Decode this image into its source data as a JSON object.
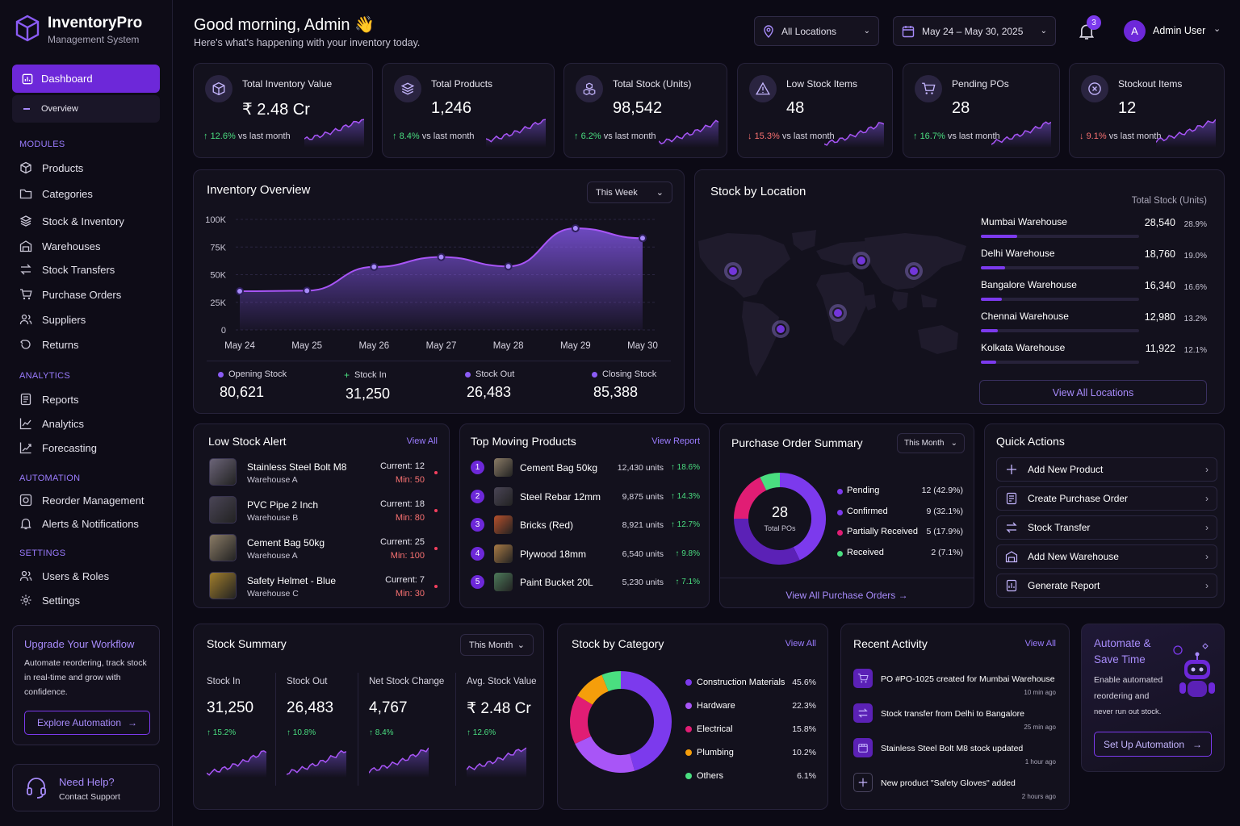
{
  "app": {
    "name": "InventoryPro",
    "subtitle": "Management System"
  },
  "sidebar": {
    "active": {
      "label": "Dashboard",
      "sub": "Overview"
    },
    "sections": [
      {
        "title": "MODULES",
        "items": [
          "Products",
          "Categories",
          "Stock & Inventory",
          "Warehouses",
          "Stock Transfers",
          "Purchase Orders",
          "Suppliers",
          "Returns"
        ]
      },
      {
        "title": "ANALYTICS",
        "items": [
          "Reports",
          "Analytics",
          "Forecasting"
        ]
      },
      {
        "title": "AUTOMATION",
        "items": [
          "Reorder Management",
          "Alerts & Notifications"
        ]
      },
      {
        "title": "SETTINGS",
        "items": [
          "Users & Roles",
          "Settings"
        ]
      }
    ],
    "upgrade": {
      "title": "Upgrade Your Workflow",
      "text1": "Automate reordering, track stock",
      "text2": "in real-time and grow with",
      "text3": "confidence.",
      "button": "Explore Automation"
    },
    "help": {
      "title": "Need Help?",
      "sub": "Contact Support"
    }
  },
  "header": {
    "greeting": "Good morning, Admin 👋",
    "subtitle": "Here's what's happening with your inventory today.",
    "location": "All Locations",
    "daterange": "May 24 – May 30, 2025",
    "notifications": "3",
    "avatar": "A",
    "user": "Admin User"
  },
  "kpis": [
    {
      "label": "Total Inventory Value",
      "value": "₹ 2.48 Cr",
      "dir": "up",
      "change": "12.6%",
      "note": "vs last month",
      "icon": "cube-icon"
    },
    {
      "label": "Total Products",
      "value": "1,246",
      "dir": "up",
      "change": "8.4%",
      "note": "vs last month",
      "icon": "layers-icon"
    },
    {
      "label": "Total Stock (Units)",
      "value": "98,542",
      "dir": "up",
      "change": "6.2%",
      "note": "vs last month",
      "icon": "boxes-icon"
    },
    {
      "label": "Low Stock Items",
      "value": "48",
      "dir": "down",
      "change": "15.3%",
      "note": "vs last month",
      "icon": "warning-icon"
    },
    {
      "label": "Pending POs",
      "value": "28",
      "dir": "up",
      "change": "16.7%",
      "note": "vs last month",
      "icon": "cart-icon"
    },
    {
      "label": "Stockout Items",
      "value": "12",
      "dir": "down",
      "change": "9.1%",
      "note": "vs last month",
      "icon": "x-circle-icon"
    }
  ],
  "overview": {
    "title": "Inventory Overview",
    "period": "This Week",
    "stats": [
      {
        "label": "Opening Stock",
        "value": "80,621",
        "marker": "dot"
      },
      {
        "label": "Stock In",
        "value": "31,250",
        "marker": "plus"
      },
      {
        "label": "Stock Out",
        "value": "26,483",
        "marker": "dot"
      },
      {
        "label": "Closing Stock",
        "value": "85,388",
        "marker": "dot"
      }
    ]
  },
  "chart_data": {
    "type": "area",
    "categories": [
      "May 24",
      "May 25",
      "May 26",
      "May 27",
      "May 28",
      "May 29",
      "May 30"
    ],
    "values": [
      35000,
      35500,
      57000,
      66000,
      57500,
      92000,
      83000
    ],
    "y_ticks": [
      "100K",
      "75K",
      "50K",
      "25K",
      "0"
    ],
    "ylim": [
      0,
      100000
    ],
    "color": "#8b5cf6"
  },
  "location": {
    "title": "Stock by Location",
    "col_header": "Total Stock (Units)",
    "rows": [
      {
        "name": "Mumbai Warehouse",
        "value": "28,540",
        "pct": "28.9%",
        "share": 0.289
      },
      {
        "name": "Delhi Warehouse",
        "value": "18,760",
        "pct": "19.0%",
        "share": 0.19
      },
      {
        "name": "Bangalore Warehouse",
        "value": "16,340",
        "pct": "16.6%",
        "share": 0.166
      },
      {
        "name": "Chennai Warehouse",
        "value": "12,980",
        "pct": "13.2%",
        "share": 0.132
      },
      {
        "name": "Kolkata Warehouse",
        "value": "11,922",
        "pct": "12.1%",
        "share": 0.121
      }
    ],
    "button": "View All Locations"
  },
  "low_stock": {
    "title": "Low Stock Alert",
    "link": "View All",
    "items": [
      {
        "name": "Stainless Steel Bolt M8",
        "loc": "Warehouse A",
        "current": "Current: 12",
        "min": "Min: 50"
      },
      {
        "name": "PVC Pipe 2 Inch",
        "loc": "Warehouse B",
        "current": "Current: 18",
        "min": "Min: 80"
      },
      {
        "name": "Cement Bag 50kg",
        "loc": "Warehouse A",
        "current": "Current: 25",
        "min": "Min: 100"
      },
      {
        "name": "Safety Helmet - Blue",
        "loc": "Warehouse C",
        "current": "Current: 7",
        "min": "Min: 30"
      }
    ]
  },
  "top_moving": {
    "title": "Top Moving Products",
    "link": "View Report",
    "items": [
      {
        "rank": "1",
        "name": "Cement Bag 50kg",
        "units": "12,430 units",
        "change": "18.6%"
      },
      {
        "rank": "2",
        "name": "Steel Rebar 12mm",
        "units": "9,875 units",
        "change": "14.3%"
      },
      {
        "rank": "3",
        "name": "Bricks (Red)",
        "units": "8,921 units",
        "change": "12.7%"
      },
      {
        "rank": "4",
        "name": "Plywood 18mm",
        "units": "6,540 units",
        "change": "9.8%"
      },
      {
        "rank": "5",
        "name": "Paint Bucket 20L",
        "units": "5,230 units",
        "change": "7.1%"
      }
    ]
  },
  "po_summary": {
    "title": "Purchase Order Summary",
    "period": "This Month",
    "total": "28",
    "total_label": "Total POs",
    "rows": [
      {
        "label": "Pending",
        "value": "12 (42.9%)",
        "share": 42.9,
        "color": "#7c3aed"
      },
      {
        "label": "Confirmed",
        "value": "9 (32.1%)",
        "share": 32.1,
        "color": "#5b21b6"
      },
      {
        "label": "Partially Received",
        "value": "5 (17.9%)",
        "share": 17.9,
        "color": "#e11d74"
      },
      {
        "label": "Received",
        "value": "2 (7.1%)",
        "share": 7.1,
        "color": "#4ade80"
      }
    ],
    "link": "View All Purchase Orders"
  },
  "quick_actions": {
    "title": "Quick Actions",
    "items": [
      {
        "label": "Add New Product",
        "icon": "plus-icon"
      },
      {
        "label": "Create Purchase Order",
        "icon": "order-icon"
      },
      {
        "label": "Stock Transfer",
        "icon": "transfer-icon"
      },
      {
        "label": "Add New Warehouse",
        "icon": "warehouse-icon"
      },
      {
        "label": "Generate Report",
        "icon": "report-icon"
      }
    ]
  },
  "stock_summary": {
    "title": "Stock Summary",
    "period": "This Month",
    "cols": [
      {
        "label": "Stock In",
        "value": "31,250",
        "change": "15.2%"
      },
      {
        "label": "Stock Out",
        "value": "26,483",
        "change": "10.8%"
      },
      {
        "label": "Net Stock Change",
        "value": "4,767",
        "change": "8.4%"
      },
      {
        "label": "Avg. Stock Value",
        "value": "₹ 2.48 Cr",
        "change": "12.6%"
      }
    ]
  },
  "category": {
    "title": "Stock by Category",
    "link": "View All",
    "rows": [
      {
        "label": "Construction Materials",
        "pct": "45.6%",
        "share": 45.6,
        "color": "#7c3aed"
      },
      {
        "label": "Hardware",
        "pct": "22.3%",
        "share": 22.3,
        "color": "#a855f7"
      },
      {
        "label": "Electrical",
        "pct": "15.8%",
        "share": 15.8,
        "color": "#e11d74"
      },
      {
        "label": "Plumbing",
        "pct": "10.2%",
        "share": 10.2,
        "color": "#f59e0b"
      },
      {
        "label": "Others",
        "pct": "6.1%",
        "share": 6.1,
        "color": "#4ade80"
      }
    ]
  },
  "activity": {
    "title": "Recent Activity",
    "link": "View All",
    "items": [
      {
        "text": "PO #PO-1025 created for Mumbai Warehouse",
        "time": "10 min ago",
        "icon": "cart-icon"
      },
      {
        "text": "Stock transfer from Delhi to Bangalore",
        "time": "25 min ago",
        "icon": "transfer-icon"
      },
      {
        "text": "Stainless Steel Bolt M8 stock updated",
        "time": "1 hour ago",
        "icon": "box-icon"
      },
      {
        "text": "New product \"Safety Gloves\" added",
        "time": "2 hours ago",
        "icon": "plus-icon"
      }
    ]
  },
  "automate": {
    "title1": "Automate &",
    "title2": "Save Time",
    "text1": "Enable automated",
    "text2": "reordering and",
    "text3": "never run out stock.",
    "button": "Set Up Automation"
  }
}
